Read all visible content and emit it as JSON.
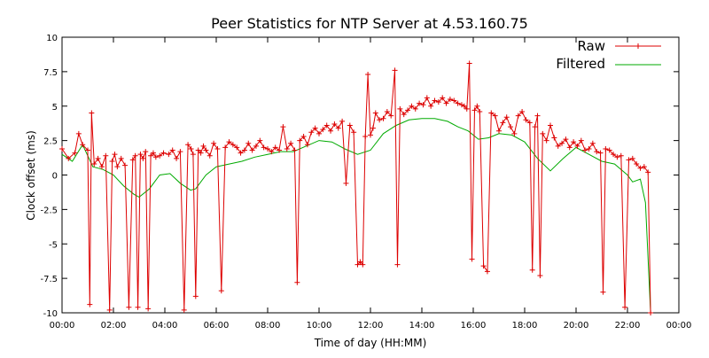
{
  "chart_data": {
    "type": "line",
    "title": "Peer Statistics for NTP Server at 4.53.160.75",
    "xlabel": "Time of day (HH:MM)",
    "ylabel": "Clock offset (ms)",
    "xlim": [
      0,
      24
    ],
    "ylim": [
      -10,
      10
    ],
    "grid": false,
    "legend_position": "top-right",
    "x_tick_values": [
      0,
      2,
      4,
      6,
      8,
      10,
      12,
      14,
      16,
      18,
      20,
      22,
      24
    ],
    "x_tick_labels": [
      "00:00",
      "02:00",
      "04:00",
      "06:00",
      "08:00",
      "10:00",
      "12:00",
      "14:00",
      "16:00",
      "18:00",
      "20:00",
      "22:00",
      "00:00"
    ],
    "y_tick_values": [
      10,
      7.5,
      5,
      2.5,
      0,
      -2.5,
      -5,
      -7.5,
      -10
    ],
    "y_tick_labels": [
      "10",
      "7.5",
      "5",
      "2.5",
      "0",
      "-2.5",
      "-5",
      "-7.5",
      "-10"
    ],
    "series": [
      {
        "name": "Raw",
        "color": "#dd0000",
        "marker": "plus",
        "x": [
          0.0,
          0.25,
          0.5,
          0.65,
          0.8,
          1.0,
          1.08,
          1.15,
          1.25,
          1.4,
          1.55,
          1.7,
          1.85,
          1.95,
          2.05,
          2.15,
          2.3,
          2.45,
          2.6,
          2.75,
          2.85,
          2.95,
          3.05,
          3.15,
          3.25,
          3.35,
          3.45,
          3.55,
          3.65,
          3.8,
          3.95,
          4.15,
          4.3,
          4.45,
          4.6,
          4.75,
          4.9,
          5.02,
          5.1,
          5.2,
          5.3,
          5.4,
          5.5,
          5.6,
          5.75,
          5.9,
          6.05,
          6.2,
          6.35,
          6.5,
          6.65,
          6.8,
          6.95,
          7.1,
          7.25,
          7.4,
          7.55,
          7.7,
          7.85,
          8.0,
          8.15,
          8.3,
          8.45,
          8.6,
          8.75,
          8.9,
          9.05,
          9.15,
          9.25,
          9.4,
          9.55,
          9.7,
          9.85,
          10.0,
          10.15,
          10.3,
          10.45,
          10.6,
          10.75,
          10.9,
          11.05,
          11.2,
          11.35,
          11.5,
          11.6,
          11.7,
          11.8,
          11.9,
          12.0,
          12.1,
          12.2,
          12.35,
          12.5,
          12.65,
          12.8,
          12.95,
          13.05,
          13.15,
          13.3,
          13.45,
          13.6,
          13.75,
          13.9,
          14.05,
          14.2,
          14.35,
          14.5,
          14.65,
          14.8,
          14.95,
          15.1,
          15.25,
          15.4,
          15.55,
          15.65,
          15.75,
          15.85,
          15.95,
          16.05,
          16.15,
          16.25,
          16.4,
          16.55,
          16.7,
          16.85,
          17.0,
          17.15,
          17.3,
          17.45,
          17.6,
          17.75,
          17.9,
          18.05,
          18.2,
          18.3,
          18.4,
          18.5,
          18.6,
          18.7,
          18.85,
          19.0,
          19.15,
          19.3,
          19.45,
          19.6,
          19.75,
          19.9,
          20.05,
          20.2,
          20.35,
          20.5,
          20.65,
          20.8,
          20.95,
          21.05,
          21.15,
          21.3,
          21.45,
          21.6,
          21.75,
          21.9,
          22.05,
          22.2,
          22.35,
          22.5,
          22.65,
          22.8,
          22.9
        ],
        "y": [
          1.9,
          1.2,
          1.6,
          3.0,
          2.2,
          1.8,
          -9.4,
          4.5,
          0.8,
          1.2,
          0.6,
          1.4,
          -9.8,
          1.0,
          1.5,
          0.6,
          1.2,
          0.7,
          -9.6,
          1.1,
          1.4,
          -9.6,
          1.5,
          1.2,
          1.7,
          -9.7,
          1.4,
          1.6,
          1.3,
          1.4,
          1.6,
          1.5,
          1.8,
          1.2,
          1.7,
          -9.8,
          2.2,
          1.9,
          1.5,
          -8.8,
          1.8,
          1.6,
          2.1,
          1.8,
          1.4,
          2.3,
          1.9,
          -8.4,
          2.0,
          2.4,
          2.2,
          2.0,
          1.6,
          1.8,
          2.3,
          1.8,
          2.1,
          2.5,
          2.0,
          1.9,
          1.7,
          2.0,
          1.8,
          3.5,
          1.9,
          2.3,
          1.8,
          -7.8,
          2.5,
          2.8,
          2.2,
          3.1,
          3.4,
          3.0,
          3.3,
          3.6,
          3.2,
          3.7,
          3.4,
          3.9,
          -0.6,
          3.6,
          3.1,
          -6.5,
          -6.3,
          -6.5,
          2.8,
          7.3,
          2.9,
          3.4,
          4.5,
          4.0,
          4.1,
          4.6,
          4.3,
          7.6,
          -6.5,
          4.8,
          4.4,
          4.7,
          5.0,
          4.8,
          5.2,
          5.1,
          5.6,
          5.0,
          5.4,
          5.3,
          5.6,
          5.2,
          5.5,
          5.4,
          5.2,
          5.1,
          5.0,
          4.8,
          8.1,
          -6.1,
          4.7,
          5.0,
          4.6,
          -6.6,
          -7.0,
          4.5,
          4.3,
          3.2,
          3.8,
          4.2,
          3.5,
          3.0,
          4.3,
          4.6,
          4.0,
          3.8,
          -6.9,
          3.5,
          4.3,
          -7.3,
          3.0,
          2.5,
          3.6,
          2.7,
          2.1,
          2.3,
          2.6,
          2.0,
          2.4,
          2.1,
          2.5,
          1.8,
          1.9,
          2.3,
          1.7,
          1.6,
          -8.5,
          1.9,
          1.8,
          1.5,
          1.3,
          1.4,
          -9.6,
          1.1,
          1.2,
          0.8,
          0.5,
          0.6,
          0.2,
          -10.0
        ]
      },
      {
        "name": "Filtered",
        "color": "#00aa00",
        "x": [
          0.0,
          0.4,
          0.8,
          1.2,
          1.6,
          2.0,
          2.4,
          2.8,
          3.0,
          3.4,
          3.8,
          4.2,
          4.6,
          5.0,
          5.2,
          5.6,
          6.0,
          6.5,
          7.0,
          7.5,
          8.0,
          8.5,
          9.0,
          9.5,
          10.0,
          10.5,
          11.0,
          11.5,
          12.0,
          12.5,
          13.0,
          13.5,
          14.0,
          14.5,
          15.0,
          15.4,
          15.8,
          16.2,
          16.6,
          17.0,
          17.5,
          18.0,
          18.5,
          19.0,
          19.5,
          20.0,
          20.5,
          21.0,
          21.5,
          22.0,
          22.2,
          22.5,
          22.7,
          22.9
        ],
        "y": [
          1.5,
          1.0,
          2.2,
          0.6,
          0.4,
          0.0,
          -0.8,
          -1.4,
          -1.6,
          -1.0,
          0.0,
          0.1,
          -0.6,
          -1.1,
          -1.0,
          0.0,
          0.6,
          0.8,
          1.0,
          1.3,
          1.5,
          1.7,
          1.7,
          2.1,
          2.5,
          2.4,
          1.9,
          1.5,
          1.8,
          3.0,
          3.6,
          4.0,
          4.1,
          4.1,
          3.9,
          3.5,
          3.2,
          2.6,
          2.7,
          3.0,
          2.9,
          2.4,
          1.2,
          0.3,
          1.2,
          2.0,
          1.5,
          1.0,
          0.8,
          0.0,
          -0.5,
          -0.3,
          -2.0,
          -10.0
        ]
      }
    ]
  }
}
